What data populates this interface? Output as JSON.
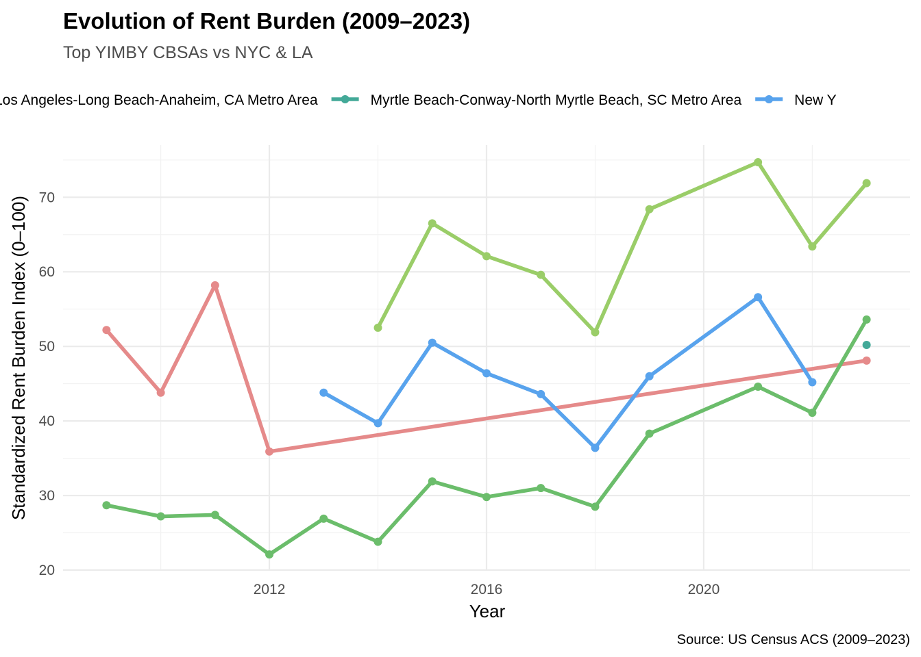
{
  "chart_data": {
    "type": "line",
    "title": "Evolution of Rent Burden (2009–2023)",
    "subtitle": "Top YIMBY CBSAs vs NYC & LA",
    "xlabel": "Year",
    "ylabel": "Standardized Rent Burden Index (0–100)",
    "caption": "Source: US Census ACS (2009–2023)",
    "xlim": [
      2008.2,
      2023.8
    ],
    "ylim": [
      20,
      77
    ],
    "x_ticks": [
      2012,
      2016,
      2020
    ],
    "y_ticks": [
      20,
      30,
      40,
      50,
      60,
      70
    ],
    "grid": true,
    "legend_position": "top",
    "legend": [
      {
        "label": "Los Angeles-Long Beach-Anaheim, CA Metro Area",
        "color": "#e58a8a"
      },
      {
        "label": "Myrtle Beach-Conway-North Myrtle Beach, SC Metro Area",
        "color": "#43a998"
      },
      {
        "label": "New Y",
        "color": "#58a3ed"
      }
    ],
    "series": [
      {
        "color": "#e58a8a",
        "x": [
          2009,
          2010,
          2011,
          2012,
          2023
        ],
        "y": [
          52.2,
          43.8,
          58.2,
          35.9,
          48.1
        ]
      },
      {
        "color": "#43a998",
        "x": [
          2023
        ],
        "y": [
          50.2
        ]
      },
      {
        "color": "#58a3ed",
        "x": [
          2013,
          2014,
          2015,
          2016,
          2017,
          2018,
          2019,
          2021,
          2022
        ],
        "y": [
          43.8,
          39.7,
          50.5,
          46.4,
          43.6,
          36.4,
          46.0,
          56.6,
          45.2
        ]
      },
      {
        "color": "#9acd68",
        "x": [
          2014,
          2015,
          2016,
          2017,
          2018,
          2019,
          2021,
          2022,
          2023
        ],
        "y": [
          52.5,
          66.5,
          62.1,
          59.6,
          51.9,
          68.4,
          74.7,
          63.4,
          71.9
        ]
      },
      {
        "color": "#6bbd6b",
        "x": [
          2009,
          2010,
          2011,
          2012,
          2013,
          2014,
          2015,
          2016,
          2017,
          2018,
          2019,
          2021,
          2022,
          2023
        ],
        "y": [
          28.7,
          27.2,
          27.4,
          22.1,
          26.9,
          23.8,
          31.9,
          29.8,
          31.0,
          28.5,
          38.3,
          44.6,
          41.1,
          53.6
        ]
      }
    ]
  }
}
